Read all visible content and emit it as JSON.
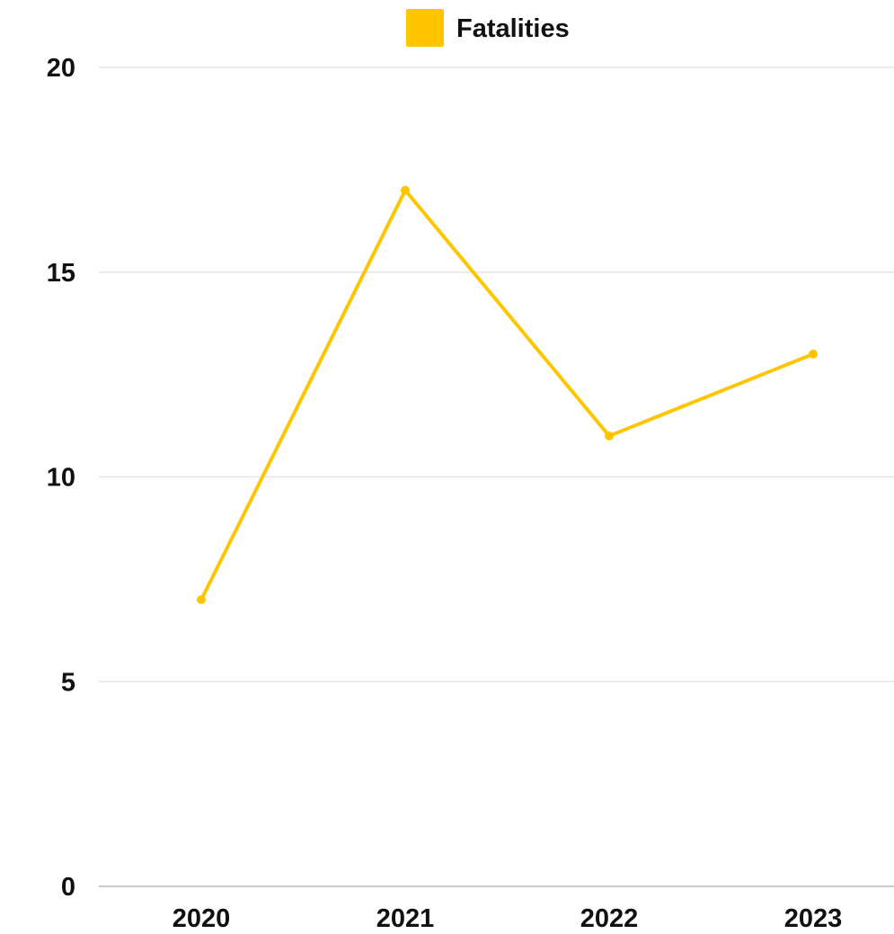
{
  "chart_data": {
    "type": "line",
    "categories": [
      "2020",
      "2021",
      "2022",
      "2023"
    ],
    "series": [
      {
        "name": "Fatalities",
        "values": [
          7,
          17,
          11,
          13
        ],
        "color": "#FFC600"
      }
    ],
    "ylim": [
      0,
      20
    ],
    "yticks": [
      0,
      5,
      10,
      15,
      20
    ],
    "ytick_labels": [
      "0",
      "5",
      "10",
      "15",
      "20"
    ],
    "grid": true,
    "legend": {
      "placement": "top-center",
      "marker": "square"
    },
    "colors": {
      "gridline": "#E6E6E6",
      "baseline": "#CCCCCC",
      "text": "#111111"
    }
  }
}
